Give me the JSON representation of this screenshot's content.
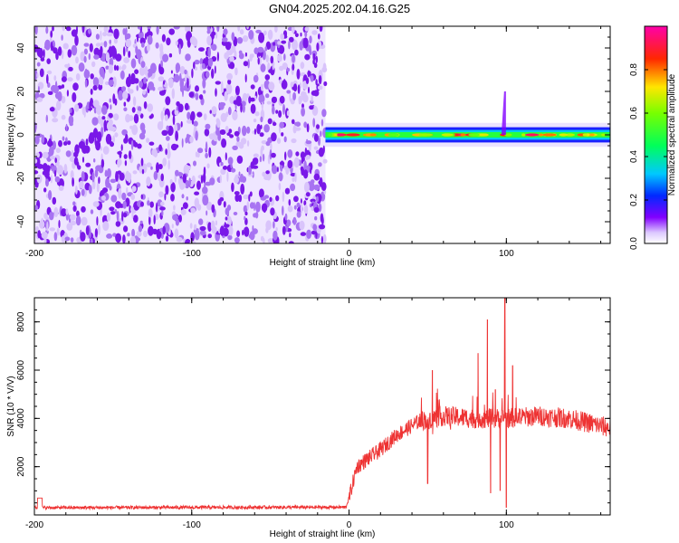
{
  "title": "GN04.2025.202.04.16.G25",
  "chart_data": [
    {
      "type": "heatmap",
      "xlabel": "Height of straight line (km)",
      "ylabel": "Frequency (Hz)",
      "xlim": [
        -200,
        166
      ],
      "ylim": [
        -50,
        50
      ],
      "xticks": [
        "-200",
        "-100",
        "0",
        "100"
      ],
      "yticks": [
        "-40",
        "-20",
        "0",
        "20",
        "40"
      ],
      "colorbar": {
        "label": "Normalized spectral amplitude",
        "range": [
          0,
          1
        ],
        "ticks": [
          "0.0",
          "0.2",
          "0.4",
          "0.6",
          "0.8"
        ]
      },
      "noise_region_x": [
        -200,
        -15
      ],
      "signal_band": {
        "x_start": -15,
        "x_end": 166,
        "center_freq": 0,
        "half_width_hz": 2.5,
        "spike": {
          "x": 98,
          "freq_top": 20
        }
      }
    },
    {
      "type": "line",
      "xlabel": "Height of straight line (km)",
      "ylabel": "SNR (10 * V/V)",
      "xlim": [
        -200,
        166
      ],
      "ylim": [
        0,
        9000
      ],
      "xticks": [
        "-200",
        "-100",
        "0",
        "100"
      ],
      "yticks": [
        "2000",
        "4000",
        "6000",
        "8000"
      ],
      "color": "#ee3333",
      "series_profile": [
        {
          "x": -200,
          "y": 300
        },
        {
          "x": -2,
          "y": 320
        },
        {
          "x": 0,
          "y": 700
        },
        {
          "x": 5,
          "y": 2000
        },
        {
          "x": 20,
          "y": 2700
        },
        {
          "x": 30,
          "y": 3300
        },
        {
          "x": 45,
          "y": 3900
        },
        {
          "x": 60,
          "y": 4100
        },
        {
          "x": 80,
          "y": 4000
        },
        {
          "x": 100,
          "y": 4000
        },
        {
          "x": 120,
          "y": 4100
        },
        {
          "x": 140,
          "y": 4000
        },
        {
          "x": 166,
          "y": 3600
        }
      ],
      "spikes": [
        {
          "x": 50,
          "y": 1300
        },
        {
          "x": 53,
          "y": 6000
        },
        {
          "x": 82,
          "y": 6700
        },
        {
          "x": 88,
          "y": 8100
        },
        {
          "x": 90,
          "y": 900
        },
        {
          "x": 93,
          "y": 5200
        },
        {
          "x": 96,
          "y": 1000
        },
        {
          "x": 99,
          "y": 9000
        },
        {
          "x": 100,
          "y": 300
        },
        {
          "x": 104,
          "y": 6200
        }
      ]
    }
  ]
}
